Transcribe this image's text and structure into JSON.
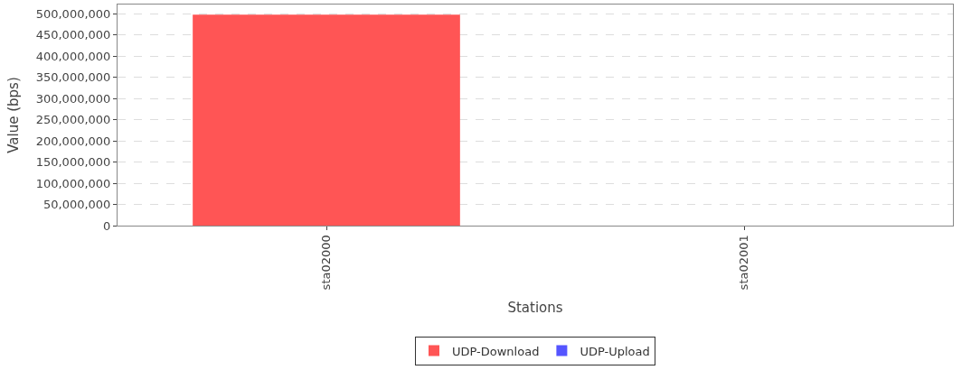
{
  "chart_data": {
    "type": "bar",
    "xlabel": "Stations",
    "ylabel": "Value (bps)",
    "categories": [
      "sta02000",
      "sta02001"
    ],
    "series": [
      {
        "name": "UDP-Download",
        "color": "#ff5555",
        "values": [
          498000000,
          0
        ]
      },
      {
        "name": "UDP-Upload",
        "color": "#5555ff",
        "values": [
          0,
          0
        ]
      }
    ],
    "stacked": true,
    "ylim": [
      0,
      522000000
    ],
    "yticks": [
      {
        "value": 0,
        "label": "0"
      },
      {
        "value": 50000000,
        "label": "50,000,000"
      },
      {
        "value": 100000000,
        "label": "100,000,000"
      },
      {
        "value": 150000000,
        "label": "150,000,000"
      },
      {
        "value": 200000000,
        "label": "200,000,000"
      },
      {
        "value": 250000000,
        "label": "250,000,000"
      },
      {
        "value": 300000000,
        "label": "300,000,000"
      },
      {
        "value": 350000000,
        "label": "350,000,000"
      },
      {
        "value": 400000000,
        "label": "400,000,000"
      },
      {
        "value": 450000000,
        "label": "450,000,000"
      },
      {
        "value": 500000000,
        "label": "500,000,000"
      }
    ],
    "grid": "y",
    "legend": "bottom"
  }
}
